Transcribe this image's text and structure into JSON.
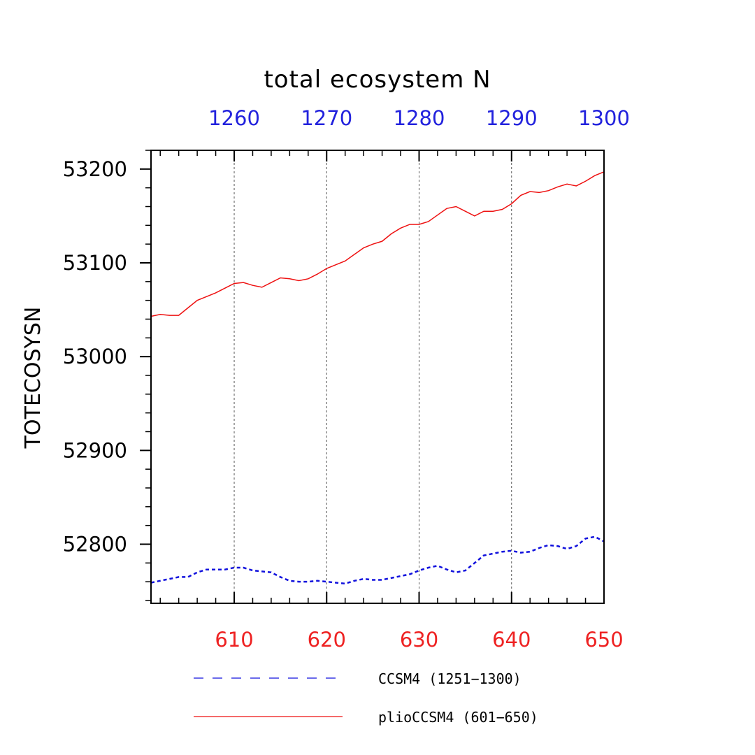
{
  "chart_data": {
    "type": "line",
    "title": "total ecosystem N",
    "ylabel": "TOTECOSYSN",
    "xlabel": "",
    "xlim": [
      601,
      650
    ],
    "ylim": [
      52737,
      53220
    ],
    "top_xlim": [
      1251,
      1300
    ],
    "bottom_ticks": [
      "610",
      "620",
      "630",
      "640",
      "650"
    ],
    "top_ticks": [
      "1260",
      "1270",
      "1280",
      "1290",
      "1300"
    ],
    "y_ticks": [
      "53200",
      "53100",
      "53000",
      "52900",
      "52800"
    ],
    "grid": "vertical dashed at major x ticks",
    "legend_position": "bottom",
    "colors": {
      "top_axis": "#2222dd",
      "bottom_axis": "#ee2222"
    },
    "series": [
      {
        "name": "CCSM4 (1251−1300)",
        "color": "#1111dd",
        "style": "dashed",
        "x": [
          601,
          602,
          603,
          604,
          605,
          606,
          607,
          608,
          609,
          610,
          611,
          612,
          613,
          614,
          615,
          616,
          617,
          618,
          619,
          620,
          621,
          622,
          623,
          624,
          625,
          626,
          627,
          628,
          629,
          630,
          631,
          632,
          633,
          634,
          635,
          636,
          637,
          638,
          639,
          640,
          641,
          642,
          643,
          644,
          645,
          646,
          647,
          648,
          649,
          650
        ],
        "values": [
          52759,
          52761,
          52763,
          52765,
          52765,
          52770,
          52773,
          52773,
          52773,
          52775,
          52775,
          52772,
          52771,
          52770,
          52765,
          52761,
          52760,
          52760,
          52761,
          52760,
          52759,
          52758,
          52761,
          52763,
          52762,
          52762,
          52764,
          52766,
          52768,
          52772,
          52775,
          52777,
          52773,
          52770,
          52772,
          52780,
          52788,
          52790,
          52792,
          52793,
          52791,
          52792,
          52796,
          52799,
          52798,
          52795,
          52798,
          52806,
          52808,
          52803
        ]
      },
      {
        "name": "plioCCSM4 (601−650)",
        "color": "#ee1111",
        "style": "solid",
        "x": [
          601,
          602,
          603,
          604,
          605,
          606,
          607,
          608,
          609,
          610,
          611,
          612,
          613,
          614,
          615,
          616,
          617,
          618,
          619,
          620,
          621,
          622,
          623,
          624,
          625,
          626,
          627,
          628,
          629,
          630,
          631,
          632,
          633,
          634,
          635,
          636,
          637,
          638,
          639,
          640,
          641,
          642,
          643,
          644,
          645,
          646,
          647,
          648,
          649,
          650
        ],
        "values": [
          53043,
          53045,
          53044,
          53044,
          53052,
          53060,
          53064,
          53068,
          53073,
          53078,
          53079,
          53076,
          53074,
          53079,
          53084,
          53083,
          53081,
          53083,
          53088,
          53094,
          53098,
          53102,
          53109,
          53116,
          53120,
          53123,
          53131,
          53137,
          53141,
          53141,
          53144,
          53151,
          53158,
          53160,
          53155,
          53150,
          53155,
          53155,
          53157,
          53163,
          53172,
          53176,
          53175,
          53177,
          53181,
          53184,
          53182,
          53187,
          53193,
          53197
        ]
      }
    ]
  }
}
